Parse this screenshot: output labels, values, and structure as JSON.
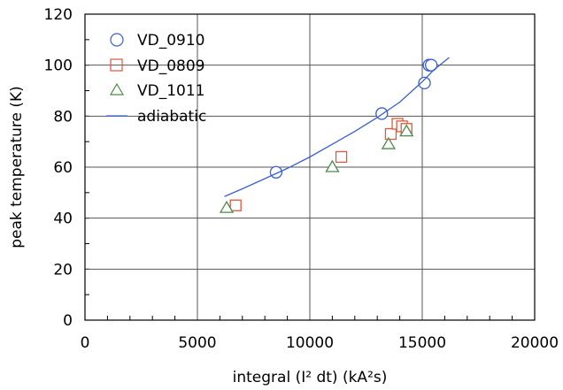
{
  "chart_data": {
    "type": "scatter",
    "title": "",
    "xlabel": "integral (I² dt) (kA²s)",
    "ylabel": "peak temperature (K)",
    "xlim": [
      0,
      20000
    ],
    "ylim": [
      0,
      120
    ],
    "x_ticks": [
      0,
      5000,
      10000,
      15000,
      20000
    ],
    "y_ticks": [
      0,
      20,
      40,
      60,
      80,
      100,
      120
    ],
    "x_minor_step": 1000,
    "y_minor_step": 10,
    "grid": true,
    "legend_position": "top-left",
    "series": [
      {
        "name": "VD_0910",
        "marker": "circle",
        "color": "#3a5fd6",
        "points": [
          [
            8500,
            58
          ],
          [
            13200,
            81
          ],
          [
            15100,
            93
          ],
          [
            15300,
            100
          ],
          [
            15400,
            100
          ]
        ]
      },
      {
        "name": "VD_0809",
        "marker": "square",
        "color": "#e0563b",
        "points": [
          [
            6700,
            45
          ],
          [
            11400,
            64
          ],
          [
            13600,
            73
          ],
          [
            13900,
            77
          ],
          [
            14100,
            76
          ],
          [
            14300,
            75
          ]
        ]
      },
      {
        "name": "VD_1011",
        "marker": "triangle",
        "color": "#4a8c4a",
        "points": [
          [
            6300,
            44
          ],
          [
            11000,
            60
          ],
          [
            13500,
            69
          ],
          [
            14300,
            74
          ]
        ]
      },
      {
        "name": "adiabatic",
        "marker": "line",
        "color": "#3a5fd6",
        "points": [
          [
            6200,
            48.5
          ],
          [
            7000,
            51.5
          ],
          [
            8000,
            55.5
          ],
          [
            9000,
            59.5
          ],
          [
            10000,
            64
          ],
          [
            11000,
            69
          ],
          [
            12000,
            74
          ],
          [
            13000,
            79.5
          ],
          [
            14000,
            85.5
          ],
          [
            15000,
            93.5
          ],
          [
            15500,
            98
          ],
          [
            16200,
            103
          ]
        ]
      }
    ]
  }
}
